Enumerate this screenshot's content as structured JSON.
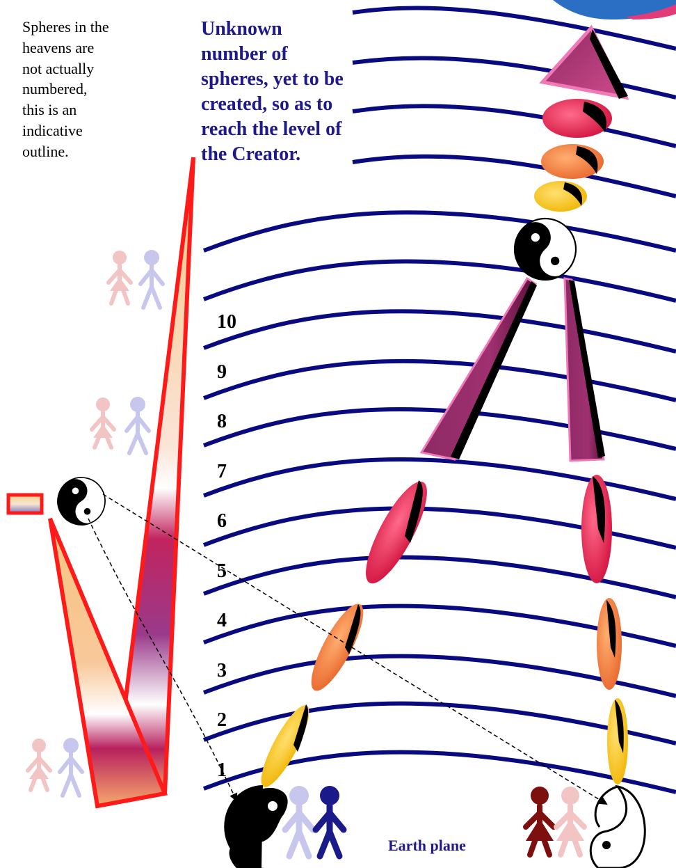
{
  "note_text": "Spheres in the heavens are not actually numbered, this is an indicative outline.",
  "headline_text": "Unknown number of spheres, yet to be created, so as to reach the level of the Creator.",
  "sphere_numbers": [
    "10",
    "9",
    "8",
    "7",
    "6",
    "5",
    "4",
    "3",
    "2",
    "1"
  ],
  "earth_label": "Earth plane",
  "colors": {
    "sphere_line": "#0a0a80",
    "label_text": "#1f1a8a",
    "red_outline": "#ff1a1a",
    "gradient_top": "#f6c47f",
    "gradient_mid": "#b8205e",
    "pink_figure": "#f3c4c4",
    "lavender_figure": "#c7c6ec",
    "navy_figure": "#1a1a8a",
    "maroon_figure": "#7d0f0f",
    "purple_shard": "#8c2a64",
    "red_shard": "#e0174a",
    "orange_shard": "#f07a3a",
    "yellow_shard": "#f5c518"
  },
  "icons": [
    "yin-yang-icon",
    "stick-figure-icon",
    "pyramid-icon",
    "sphere-shard-icon"
  ]
}
